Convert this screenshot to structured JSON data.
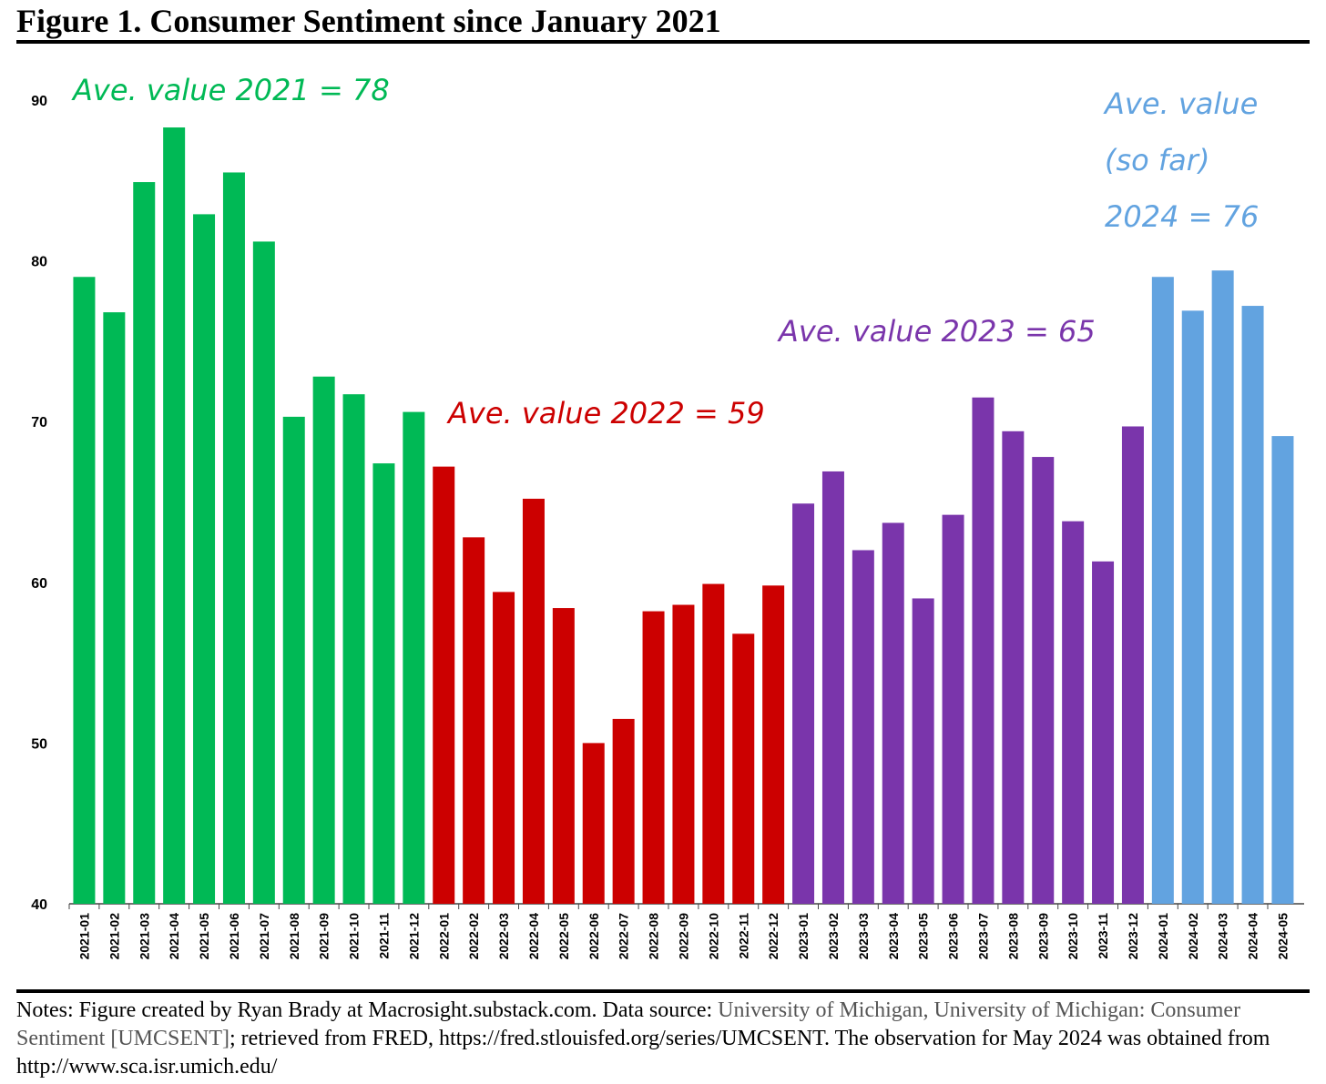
{
  "figure_title": "Figure 1. Consumer Sentiment since January 2021",
  "notes": {
    "part1": "Notes: Figure created by Ryan Brady at Macrosight.substack.com. Data source: ",
    "source": "University of Michigan, University of Michigan: Consumer Sentiment [UMCSENT]",
    "part2": "; retrieved from FRED, https://fred.stlouisfed.org/series/UMCSENT. The observation for May 2024 was obtained from http://www.sca.isr.umich.edu/"
  },
  "colors": {
    "2021": "#00b955",
    "2022": "#cc0000",
    "2023": "#7a35ab",
    "2024": "#62a3e0"
  },
  "chart_data": {
    "type": "bar",
    "title": "Figure 1. Consumer Sentiment since January 2021",
    "ylim": [
      40,
      90
    ],
    "yticks": [
      40,
      50,
      60,
      70,
      80,
      90
    ],
    "grid": false,
    "categories": [
      "2021-01",
      "2021-02",
      "2021-03",
      "2021-04",
      "2021-05",
      "2021-06",
      "2021-07",
      "2021-08",
      "2021-09",
      "2021-10",
      "2021-11",
      "2021-12",
      "2022-01",
      "2022-02",
      "2022-03",
      "2022-04",
      "2022-05",
      "2022-06",
      "2022-07",
      "2022-08",
      "2022-09",
      "2022-10",
      "2022-11",
      "2022-12",
      "2023-01",
      "2023-02",
      "2023-03",
      "2023-04",
      "2023-05",
      "2023-06",
      "2023-07",
      "2023-08",
      "2023-09",
      "2023-10",
      "2023-11",
      "2023-12",
      "2024-01",
      "2024-02",
      "2024-03",
      "2024-04",
      "2024-05"
    ],
    "values": [
      79.0,
      76.8,
      84.9,
      88.3,
      82.9,
      85.5,
      81.2,
      70.3,
      72.8,
      71.7,
      67.4,
      70.6,
      67.2,
      62.8,
      59.4,
      65.2,
      58.4,
      50.0,
      51.5,
      58.2,
      58.6,
      59.9,
      56.8,
      59.8,
      64.9,
      66.9,
      62.0,
      63.7,
      59.0,
      64.2,
      71.5,
      69.4,
      67.8,
      63.8,
      61.3,
      69.7,
      79.0,
      76.9,
      79.4,
      77.2,
      69.1
    ],
    "annotations": [
      {
        "year": "2021",
        "lines": [
          "Ave. value 2021 = 78"
        ]
      },
      {
        "year": "2022",
        "lines": [
          "Ave. value 2022 = 59"
        ]
      },
      {
        "year": "2023",
        "lines": [
          "Ave. value 2023 = 65"
        ]
      },
      {
        "year": "2024",
        "lines": [
          "Ave. value",
          "(so far)",
          "2024 = 76"
        ]
      }
    ]
  }
}
